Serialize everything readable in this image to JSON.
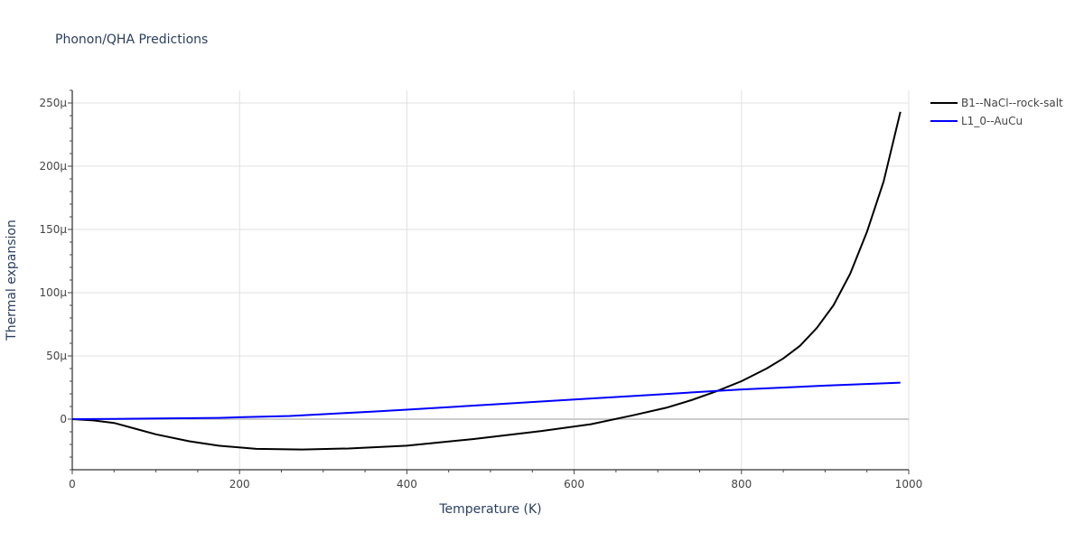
{
  "chart_data": {
    "type": "line",
    "title": "Phonon/QHA Predictions",
    "xlabel": "Temperature (K)",
    "ylabel": "Thermal expansion",
    "xlim": [
      0,
      1000
    ],
    "ylim": [
      -4e-05,
      0.00026
    ],
    "xticks": [
      0,
      200,
      400,
      600,
      800,
      1000
    ],
    "xtick_labels": [
      "0",
      "200",
      "400",
      "600",
      "800",
      "1000"
    ],
    "yticks": [
      0,
      5e-05,
      0.0001,
      0.00015,
      0.0002,
      0.00025
    ],
    "ytick_labels": [
      "0",
      "50μ",
      "100μ",
      "150μ",
      "200μ",
      "250μ"
    ],
    "grid": true,
    "legend_position": "top-right",
    "series": [
      {
        "name": "B1--NaCl--rock-salt",
        "color": "#000000",
        "x": [
          0,
          25,
          50,
          75,
          100,
          140,
          175,
          220,
          275,
          330,
          400,
          480,
          560,
          620,
          670,
          710,
          740,
          770,
          800,
          830,
          850,
          870,
          890,
          910,
          930,
          950,
          970,
          990
        ],
        "y": [
          0,
          -1e-06,
          -3e-06,
          -7.5e-06,
          -1.2e-05,
          -1.75e-05,
          -2.1e-05,
          -2.35e-05,
          -2.4e-05,
          -2.32e-05,
          -2.1e-05,
          -1.57e-05,
          -9.5e-06,
          -4e-06,
          3e-06,
          9e-06,
          1.5e-05,
          2.2e-05,
          3e-05,
          4e-05,
          4.8e-05,
          5.8e-05,
          7.2e-05,
          9e-05,
          0.000115,
          0.000148,
          0.000188,
          0.000243
        ]
      },
      {
        "name": "L1_0--AuCu",
        "color": "#0000ff",
        "x": [
          0,
          50,
          100,
          175,
          200,
          260,
          360,
          400,
          500,
          600,
          700,
          800,
          900,
          990
        ],
        "y": [
          0,
          2e-07,
          5e-07,
          1e-06,
          1.5e-06,
          2.5e-06,
          6e-06,
          7.5e-06,
          1.15e-05,
          1.55e-05,
          1.95e-05,
          2.35e-05,
          2.65e-05,
          2.88e-05
        ]
      }
    ]
  }
}
